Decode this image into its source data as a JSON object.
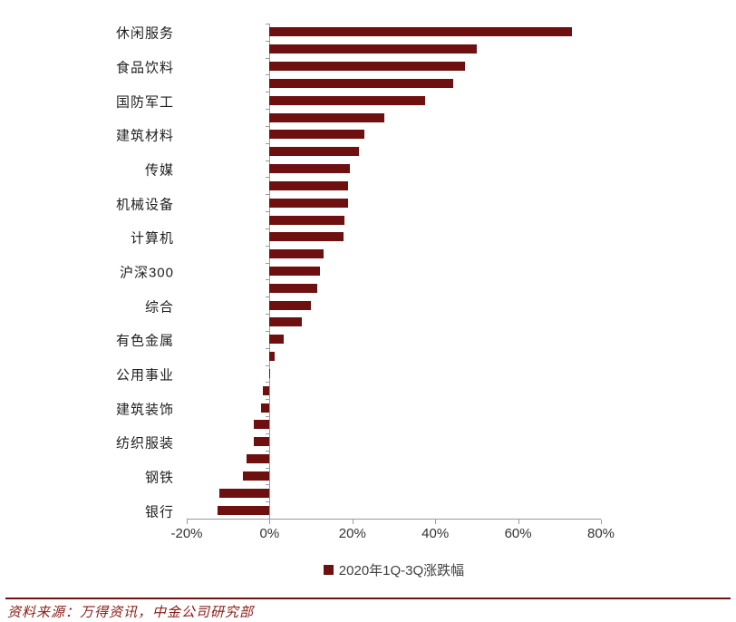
{
  "chart_data": {
    "type": "bar",
    "orientation": "horizontal",
    "title": "",
    "xlabel": "",
    "ylabel": "",
    "grid": false,
    "unit": "%",
    "xlim": [
      -20,
      80
    ],
    "x_ticks": [
      {
        "label": "-20%",
        "value": -20
      },
      {
        "label": "0%",
        "value": 0
      },
      {
        "label": "20%",
        "value": 20
      },
      {
        "label": "40%",
        "value": 40
      },
      {
        "label": "60%",
        "value": 60
      },
      {
        "label": "80%",
        "value": 80
      }
    ],
    "legend_position": "bottom-center",
    "series_name": "2020年1Q-3Q涨跌幅",
    "categories": [
      "休闲服务",
      "",
      "食品饮料",
      "",
      "国防军工",
      "",
      "建筑材料",
      "",
      "传媒",
      "",
      "机械设备",
      "",
      "计算机",
      "",
      "沪深300",
      "",
      "综合",
      "",
      "有色金属",
      "",
      "公用事业",
      "",
      "建筑装饰",
      "",
      "纺织服装",
      "",
      "钢铁",
      "",
      "银行"
    ],
    "values": [
      73.0,
      50.0,
      47.2,
      44.4,
      37.6,
      27.6,
      22.9,
      21.6,
      19.4,
      19.0,
      19.0,
      18.1,
      17.8,
      13.1,
      12.1,
      11.5,
      10.0,
      7.8,
      3.4,
      1.2,
      0.1,
      -1.7,
      -2.0,
      -3.7,
      -3.9,
      -5.5,
      -6.4,
      -12.1,
      -12.6
    ]
  },
  "legend": {
    "label": "2020年1Q-3Q涨跌幅"
  },
  "footer": {
    "source": "资料来源：万得资讯，中金公司研究部"
  },
  "colors": {
    "bar": "#6E0F10",
    "axis_line": "#9a9a9a",
    "category_text": "#1f1f1f",
    "axis_text": "#333333",
    "legend_text": "#404040",
    "source_text": "#8B1A12",
    "divider": "#731011"
  }
}
